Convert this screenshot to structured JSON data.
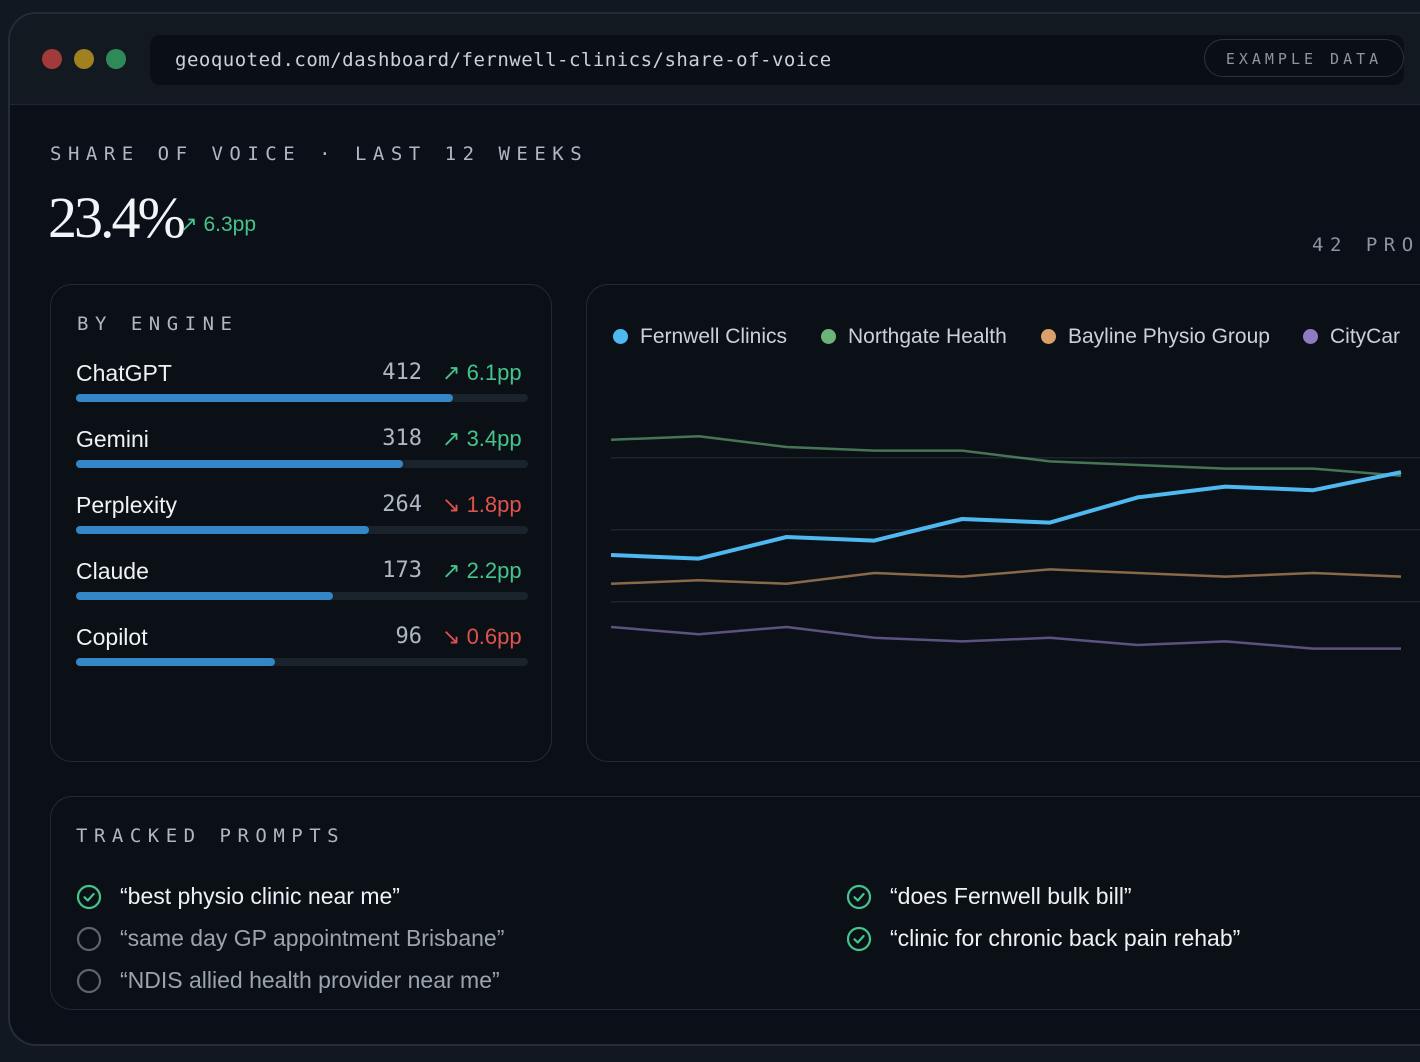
{
  "browser": {
    "url": "geoquoted.com/dashboard/fernwell-clinics/share-of-voice",
    "badge": "EXAMPLE DATA"
  },
  "header": {
    "eyebrow": "SHARE OF VOICE · LAST 12 WEEKS",
    "value": "23.4%",
    "delta": "6.3pp",
    "delta_direction": "up",
    "prompts_label": "42 PRO"
  },
  "engines": {
    "title": "BY ENGINE",
    "items": [
      {
        "name": "ChatGPT",
        "value": "412",
        "delta": "6.1pp",
        "direction": "up",
        "share": 0.833
      },
      {
        "name": "Gemini",
        "value": "318",
        "delta": "3.4pp",
        "direction": "up",
        "share": 0.724
      },
      {
        "name": "Perplexity",
        "value": "264",
        "delta": "1.8pp",
        "direction": "down",
        "share": 0.648
      },
      {
        "name": "Claude",
        "value": "173",
        "delta": "2.2pp",
        "direction": "up",
        "share": 0.569
      },
      {
        "name": "Copilot",
        "value": "96",
        "delta": "0.6pp",
        "direction": "down",
        "share": 0.44
      }
    ]
  },
  "chart_data": {
    "type": "line",
    "title": "",
    "xlabel": "",
    "ylabel": "",
    "grid": true,
    "legend_position": "top",
    "x": [
      1,
      2,
      3,
      4,
      5,
      6,
      7,
      8,
      9,
      10
    ],
    "ylim": [
      0,
      100
    ],
    "series": [
      {
        "name": "Fernwell Clinics",
        "color": "#4fb8f0",
        "values": [
          50,
          49,
          55,
          54,
          60,
          59,
          66,
          69,
          68,
          73
        ]
      },
      {
        "name": "Northgate Health",
        "color": "#6cb37a",
        "values": [
          82,
          83,
          80,
          79,
          79,
          76,
          75,
          74,
          74,
          72
        ]
      },
      {
        "name": "Bayline Physio Group",
        "color": "#d9a06a",
        "values": [
          42,
          43,
          42,
          45,
          44,
          46,
          45,
          44,
          45,
          44
        ]
      },
      {
        "name": "CityCar",
        "color": "#8e7bc2",
        "values": [
          30,
          28,
          30,
          27,
          26,
          27,
          25,
          26,
          24,
          24
        ]
      }
    ]
  },
  "prompts": {
    "title": "TRACKED PROMPTS",
    "items": [
      {
        "text": "“best physio clinic near me”",
        "tracked": true
      },
      {
        "text": "“same day GP appointment Brisbane”",
        "tracked": false
      },
      {
        "text": "“NDIS allied health provider near me”",
        "tracked": false
      },
      {
        "text": "“does Fernwell bulk bill”",
        "tracked": true
      },
      {
        "text": "“clinic for chronic back pain rehab”",
        "tracked": true
      }
    ]
  }
}
